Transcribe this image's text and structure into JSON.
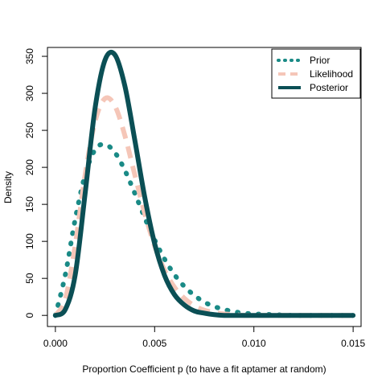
{
  "chart_data": {
    "type": "line",
    "title": "",
    "xlabel": "Proportion Coefficient p (to have a fit aptamer at random)",
    "ylabel": "Density",
    "xlim": [
      -0.0004,
      0.0154
    ],
    "ylim": [
      -15,
      362
    ],
    "x_ticks": [
      0.0,
      0.005,
      0.01,
      0.015
    ],
    "x_tick_labels": [
      "0.000",
      "0.005",
      "0.010",
      "0.015"
    ],
    "y_ticks": [
      0,
      50,
      100,
      150,
      200,
      250,
      300,
      350
    ],
    "y_tick_labels": [
      "0",
      "50",
      "100",
      "150",
      "200",
      "250",
      "300",
      "350"
    ],
    "grid": false,
    "legend_position": "top-right",
    "series": [
      {
        "name": "Prior",
        "style": "dotted",
        "color": "#1a8a86",
        "x": [
          0.0,
          0.0005,
          0.001,
          0.0015,
          0.002,
          0.0025,
          0.003,
          0.0035,
          0.004,
          0.0045,
          0.005,
          0.0055,
          0.006,
          0.0065,
          0.007,
          0.0075,
          0.008,
          0.0085,
          0.009,
          0.0095,
          0.01,
          0.011,
          0.012,
          0.013,
          0.014,
          0.015
        ],
        "values": [
          0,
          55,
          130,
          190,
          224,
          231,
          220,
          196,
          165,
          132,
          102,
          76,
          55,
          39,
          27,
          18,
          12,
          8,
          5,
          3,
          2,
          1,
          0,
          0,
          0,
          0
        ]
      },
      {
        "name": "Likelihood",
        "style": "dashed",
        "color": "#f5c6b8",
        "x": [
          0.0,
          0.0005,
          0.001,
          0.0015,
          0.002,
          0.0025,
          0.003,
          0.0035,
          0.004,
          0.0045,
          0.005,
          0.0055,
          0.006,
          0.0065,
          0.007,
          0.0075,
          0.008,
          0.0085,
          0.009,
          0.0095,
          0.01,
          0.011,
          0.012,
          0.013,
          0.014,
          0.015
        ],
        "values": [
          0,
          22,
          95,
          190,
          262,
          293,
          283,
          243,
          190,
          138,
          94,
          61,
          38,
          23,
          13,
          7,
          4,
          2,
          1,
          0,
          0,
          0,
          0,
          0,
          0,
          0
        ]
      },
      {
        "name": "Posterior",
        "style": "solid",
        "color": "#0b4f55",
        "x": [
          0.0,
          0.0005,
          0.001,
          0.0015,
          0.002,
          0.0025,
          0.003,
          0.0035,
          0.004,
          0.0045,
          0.005,
          0.0055,
          0.006,
          0.0065,
          0.007,
          0.0075,
          0.008,
          0.0085,
          0.009,
          0.0095,
          0.01,
          0.011,
          0.012,
          0.013,
          0.014,
          0.015
        ],
        "values": [
          0,
          8,
          55,
          165,
          280,
          345,
          352,
          310,
          237,
          160,
          97,
          54,
          28,
          14,
          6,
          3,
          1,
          0,
          0,
          0,
          0,
          0,
          0,
          0,
          0,
          0
        ]
      }
    ]
  }
}
